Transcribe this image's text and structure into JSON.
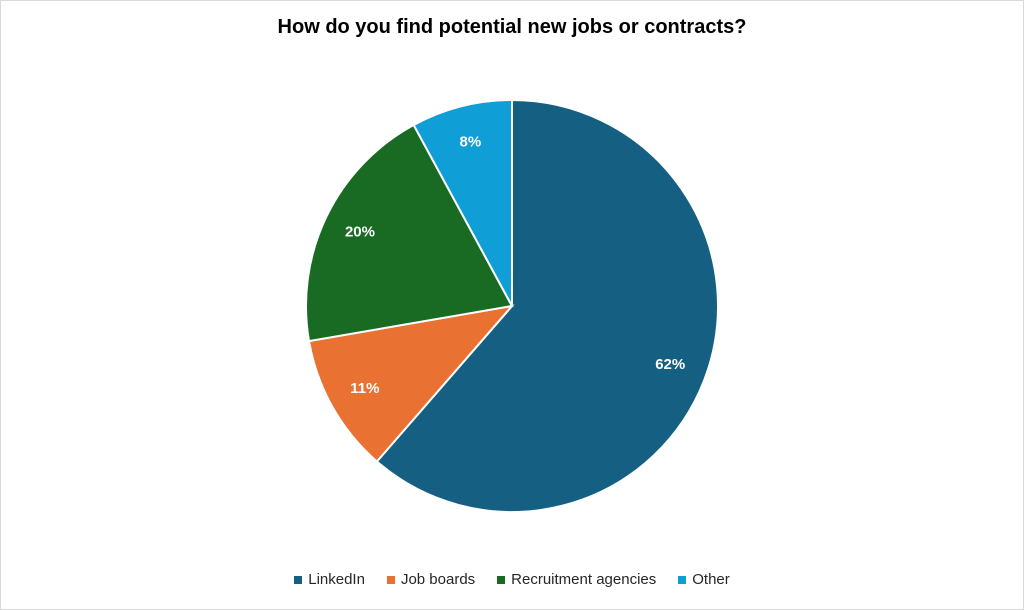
{
  "chart_data": {
    "type": "pie",
    "title": "How do you find potential new jobs or contracts?",
    "categories": [
      "LinkedIn",
      "Job boards",
      "Recruitment agencies",
      "Other"
    ],
    "values": [
      62,
      11,
      20,
      8
    ],
    "value_labels": [
      "62%",
      "11%",
      "20%",
      "8%"
    ],
    "colors": [
      "#156082",
      "#E97132",
      "#196B24",
      "#0F9ED5"
    ],
    "start_angle_deg": 0,
    "direction": "clockwise",
    "legend_position": "bottom"
  }
}
